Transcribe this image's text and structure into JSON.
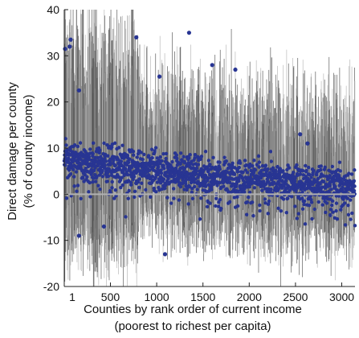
{
  "chart_data": {
    "type": "scatter",
    "title": "",
    "xlabel": "Counties by rank order of current income",
    "xlabel_sub": "(poorest to richest per capita)",
    "ylabel": "Direct damage per county",
    "ylabel_sub": "(% of county income)",
    "xlim": [
      1,
      3143
    ],
    "ylim": [
      -20,
      40
    ],
    "x_ticks": [
      1,
      500,
      1000,
      1500,
      2000,
      2500,
      3000
    ],
    "x_tick_labels": [
      "1",
      "500",
      "1000",
      "1500",
      "2000",
      "2500",
      "3000"
    ],
    "y_ticks": [
      -20,
      -10,
      0,
      10,
      20,
      30,
      40
    ],
    "y_tick_labels": [
      "-20",
      "-10",
      "0",
      "10",
      "20",
      "30",
      "40"
    ],
    "zero_line": 0,
    "grid": false,
    "marker_color": "#283593",
    "bar_colors": [
      "#5a5a5a",
      "#b8b8b8"
    ],
    "zero_line_color": "#b0b0b0",
    "series": [
      {
        "values_summary": "about 3,100 counties; one median damage point per county with likely-range whiskers",
        "x_values": [
          1,
          50,
          150,
          250,
          350,
          450,
          550,
          650,
          750,
          850,
          950,
          1050,
          1150,
          1250,
          1350,
          1450,
          1550,
          1650,
          1750,
          1850,
          1950,
          2050,
          2150,
          2250,
          2350,
          2450,
          2550,
          2650,
          2750,
          2850,
          2950,
          3050,
          3143
        ],
        "trend_median": [
          8,
          8,
          7.5,
          7,
          7,
          6.5,
          6.5,
          6,
          6,
          5.5,
          5.5,
          5,
          5,
          5,
          4.5,
          4.5,
          4,
          4,
          4,
          3.5,
          3.5,
          3.5,
          3,
          3,
          3,
          2.5,
          2.5,
          2.5,
          2,
          2,
          2,
          1.5,
          1.5
        ],
        "notable_points": [
          {
            "x": 10,
            "y": 31.5
          },
          {
            "x": 70,
            "y": 33.5
          },
          {
            "x": 60,
            "y": 32
          },
          {
            "x": 160,
            "y": 22.5
          },
          {
            "x": 780,
            "y": 34
          },
          {
            "x": 1030,
            "y": 25.5
          },
          {
            "x": 1350,
            "y": 35
          },
          {
            "x": 1600,
            "y": 28
          },
          {
            "x": 1850,
            "y": 27
          },
          {
            "x": 2550,
            "y": 13
          },
          {
            "x": 2630,
            "y": 11
          },
          {
            "x": 1090,
            "y": -13
          },
          {
            "x": 160,
            "y": -9
          },
          {
            "x": 430,
            "y": -7
          }
        ]
      }
    ]
  }
}
